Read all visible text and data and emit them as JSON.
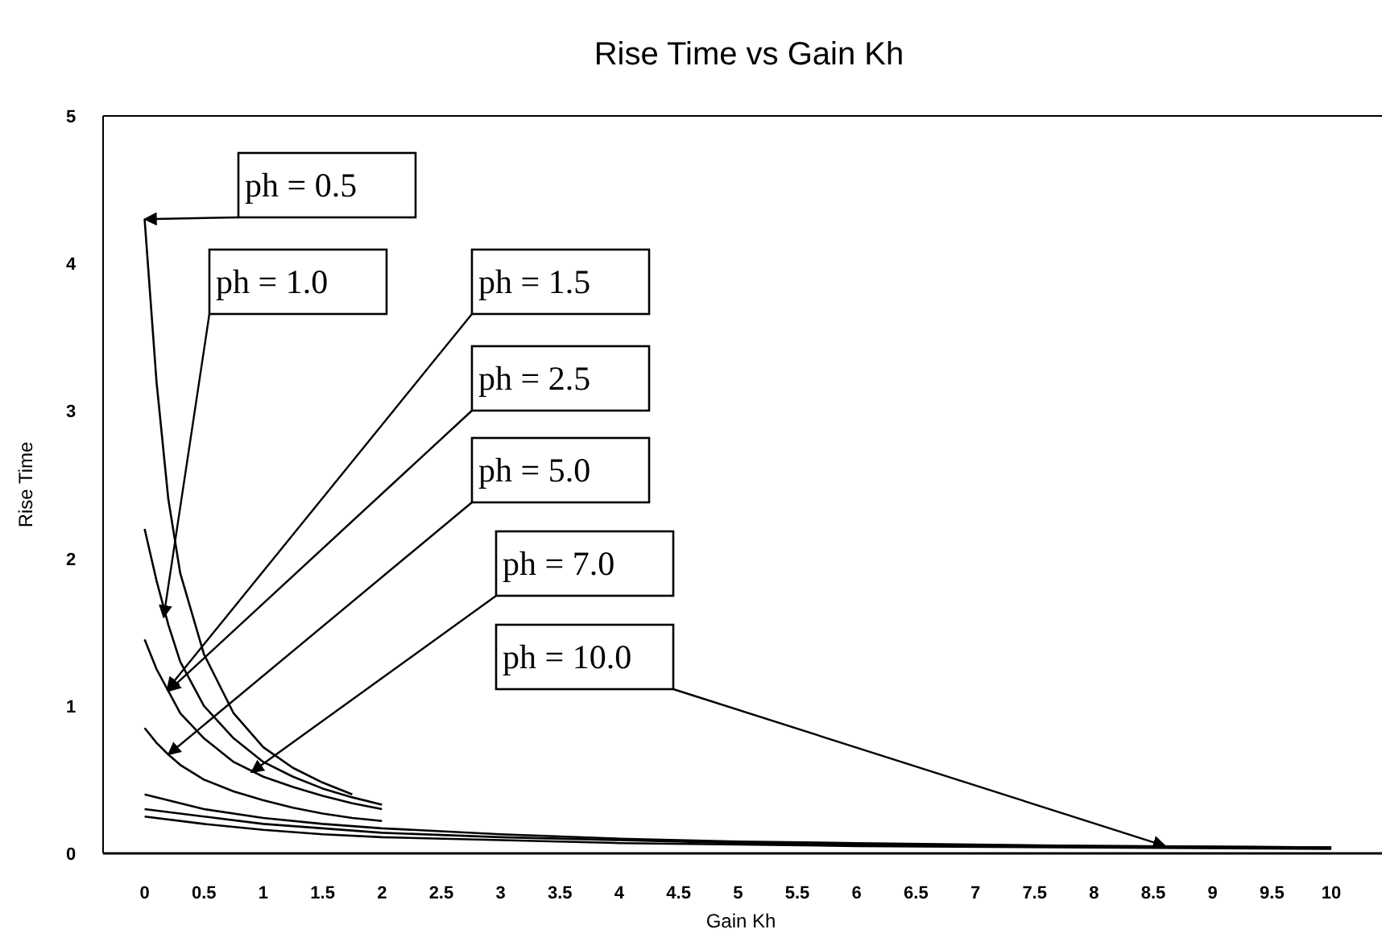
{
  "chart_data": {
    "type": "line",
    "title": "Rise Time vs Gain Kh",
    "xlabel": "Gain Kh",
    "ylabel": "Rise Time",
    "xlim": [
      -0.35,
      10.4
    ],
    "ylim": [
      0,
      5
    ],
    "xticks": [
      0,
      0.5,
      1,
      1.5,
      2,
      2.5,
      3,
      3.5,
      4,
      4.5,
      5,
      5.5,
      6,
      6.5,
      7,
      7.5,
      8,
      8.5,
      9,
      9.5,
      10
    ],
    "yticks": [
      0,
      1,
      2,
      3,
      4,
      5
    ],
    "grid": false,
    "marker": "none",
    "line_style": "solid",
    "series": [
      {
        "color": "#000000",
        "x": [
          0,
          0.1,
          0.2,
          0.3,
          0.5,
          0.75,
          1,
          1.25,
          1.5,
          1.75
        ],
        "values": [
          4.3,
          3.2,
          2.4,
          1.9,
          1.35,
          0.95,
          0.72,
          0.58,
          0.48,
          0.4
        ]
      },
      {
        "color": "#000000",
        "x": [
          0,
          0.1,
          0.2,
          0.3,
          0.5,
          0.75,
          1,
          1.25,
          1.5,
          1.75,
          2
        ],
        "values": [
          2.2,
          1.85,
          1.55,
          1.3,
          1.0,
          0.78,
          0.62,
          0.52,
          0.44,
          0.38,
          0.33
        ]
      },
      {
        "color": "#000000",
        "x": [
          0,
          0.1,
          0.2,
          0.3,
          0.5,
          0.75,
          1,
          1.25,
          1.5,
          1.75,
          2
        ],
        "values": [
          1.45,
          1.25,
          1.1,
          0.95,
          0.78,
          0.62,
          0.52,
          0.45,
          0.39,
          0.34,
          0.3
        ]
      },
      {
        "color": "#000000",
        "x": [
          0,
          0.1,
          0.2,
          0.3,
          0.5,
          0.75,
          1,
          1.25,
          1.5,
          1.75,
          2
        ],
        "values": [
          0.85,
          0.75,
          0.67,
          0.6,
          0.5,
          0.42,
          0.36,
          0.31,
          0.27,
          0.24,
          0.22
        ]
      },
      {
        "color": "#000000",
        "x": [
          0,
          0.5,
          1,
          1.5,
          2,
          3,
          4,
          5,
          6,
          8,
          10
        ],
        "values": [
          0.4,
          0.3,
          0.24,
          0.2,
          0.17,
          0.13,
          0.1,
          0.08,
          0.07,
          0.05,
          0.04
        ]
      },
      {
        "color": "#000000",
        "x": [
          0,
          0.5,
          1,
          1.5,
          2,
          3,
          4,
          5,
          6,
          8,
          10
        ],
        "values": [
          0.3,
          0.25,
          0.2,
          0.17,
          0.14,
          0.11,
          0.09,
          0.07,
          0.06,
          0.05,
          0.04
        ]
      },
      {
        "color": "#000000",
        "x": [
          0,
          0.5,
          1,
          1.5,
          2,
          3,
          4,
          5,
          6,
          8,
          10
        ],
        "values": [
          0.25,
          0.2,
          0.16,
          0.13,
          0.11,
          0.09,
          0.07,
          0.06,
          0.05,
          0.04,
          0.03
        ]
      }
    ],
    "annotations": [
      {
        "text": "ph = 0.5",
        "x": 0,
        "y": 4.3
      },
      {
        "text": "ph = 1.0",
        "x": 0.16,
        "y": 1.6
      },
      {
        "text": "ph = 1.5",
        "x": 0.19,
        "y": 1.11
      },
      {
        "text": "ph = 2.5",
        "x": 0.2,
        "y": 1.1
      },
      {
        "text": "ph = 5.0",
        "x": 0.2,
        "y": 0.67
      },
      {
        "text": "ph = 7.0",
        "x": 0.9,
        "y": 0.55
      },
      {
        "text": "ph = 10.0",
        "x": 8.6,
        "y": 0.05
      }
    ]
  }
}
